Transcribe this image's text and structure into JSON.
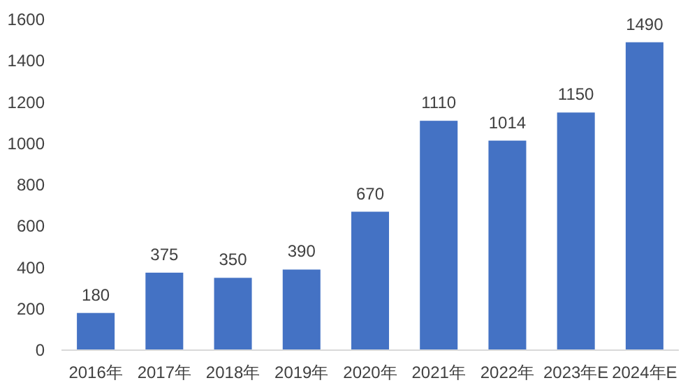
{
  "chart_data": {
    "type": "bar",
    "categories": [
      "2016年",
      "2017年",
      "2018年",
      "2019年",
      "2020年",
      "2021年",
      "2022年",
      "2023年E",
      "2024年E"
    ],
    "values": [
      180,
      375,
      350,
      390,
      670,
      1110,
      1014,
      1150,
      1490
    ],
    "color": "#4472c4",
    "ylim": [
      0,
      1600
    ],
    "yticks": [
      0,
      200,
      400,
      600,
      800,
      1000,
      1200,
      1400,
      1600
    ],
    "data_labels": true
  }
}
